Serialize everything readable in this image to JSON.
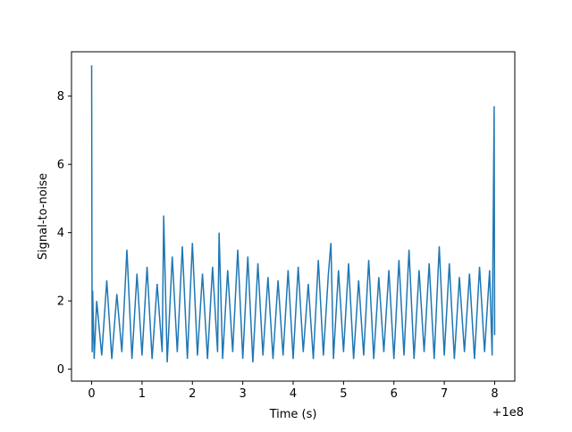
{
  "chart_data": {
    "type": "line",
    "title": "",
    "xlabel": "Time (s)",
    "ylabel": "Signal-to-noise",
    "x_offset_label": "+1e8",
    "xlim": [
      -0.4,
      8.4
    ],
    "ylim": [
      -0.35,
      9.3
    ],
    "x_ticks": [
      0,
      1,
      2,
      3,
      4,
      5,
      6,
      7,
      8
    ],
    "x_tick_labels": [
      "0",
      "1",
      "2",
      "3",
      "4",
      "5",
      "6",
      "7",
      "8"
    ],
    "y_ticks": [
      0,
      2,
      4,
      6,
      8
    ],
    "y_tick_labels": [
      "0",
      "2",
      "4",
      "6",
      "8"
    ],
    "grid": false,
    "series": [
      {
        "color": "#1f77b4",
        "x": [
          0,
          0.005,
          0.01,
          0.02,
          0.05,
          0.1,
          0.2,
          0.3,
          0.4,
          0.5,
          0.6,
          0.7,
          0.8,
          0.9,
          1.0,
          1.1,
          1.2,
          1.3,
          1.4,
          1.43,
          1.5,
          1.6,
          1.7,
          1.8,
          1.9,
          2.0,
          2.1,
          2.2,
          2.3,
          2.4,
          2.5,
          2.53,
          2.6,
          2.7,
          2.8,
          2.9,
          3.0,
          3.1,
          3.2,
          3.3,
          3.4,
          3.5,
          3.6,
          3.7,
          3.8,
          3.9,
          4.0,
          4.1,
          4.2,
          4.3,
          4.4,
          4.5,
          4.6,
          4.7,
          4.75,
          4.8,
          4.9,
          5.0,
          5.1,
          5.2,
          5.3,
          5.4,
          5.5,
          5.6,
          5.7,
          5.8,
          5.9,
          6.0,
          6.1,
          6.2,
          6.3,
          6.4,
          6.5,
          6.6,
          6.7,
          6.8,
          6.9,
          7.0,
          7.1,
          7.2,
          7.3,
          7.4,
          7.5,
          7.6,
          7.7,
          7.8,
          7.9,
          7.95,
          7.99,
          8.0
        ],
        "y": [
          8.9,
          4.0,
          0.5,
          2.3,
          0.3,
          2.0,
          0.4,
          2.6,
          0.3,
          2.2,
          0.5,
          3.5,
          0.3,
          2.8,
          0.4,
          3.0,
          0.3,
          2.5,
          0.5,
          4.5,
          0.2,
          3.3,
          0.5,
          3.6,
          0.3,
          3.7,
          0.4,
          2.8,
          0.3,
          3.0,
          0.5,
          4.0,
          0.3,
          2.9,
          0.5,
          3.5,
          0.3,
          3.3,
          0.2,
          3.1,
          0.4,
          2.7,
          0.3,
          2.6,
          0.4,
          2.9,
          0.3,
          3.0,
          0.5,
          2.5,
          0.3,
          3.2,
          0.4,
          2.8,
          3.7,
          0.3,
          2.9,
          0.5,
          3.1,
          0.3,
          2.6,
          0.4,
          3.2,
          0.3,
          2.7,
          0.5,
          2.9,
          0.3,
          3.2,
          0.4,
          3.5,
          0.3,
          2.9,
          0.5,
          3.1,
          0.3,
          3.6,
          0.4,
          3.1,
          0.3,
          2.7,
          0.5,
          2.8,
          0.3,
          3.0,
          0.5,
          2.9,
          0.4,
          7.7,
          1.0
        ]
      }
    ]
  }
}
